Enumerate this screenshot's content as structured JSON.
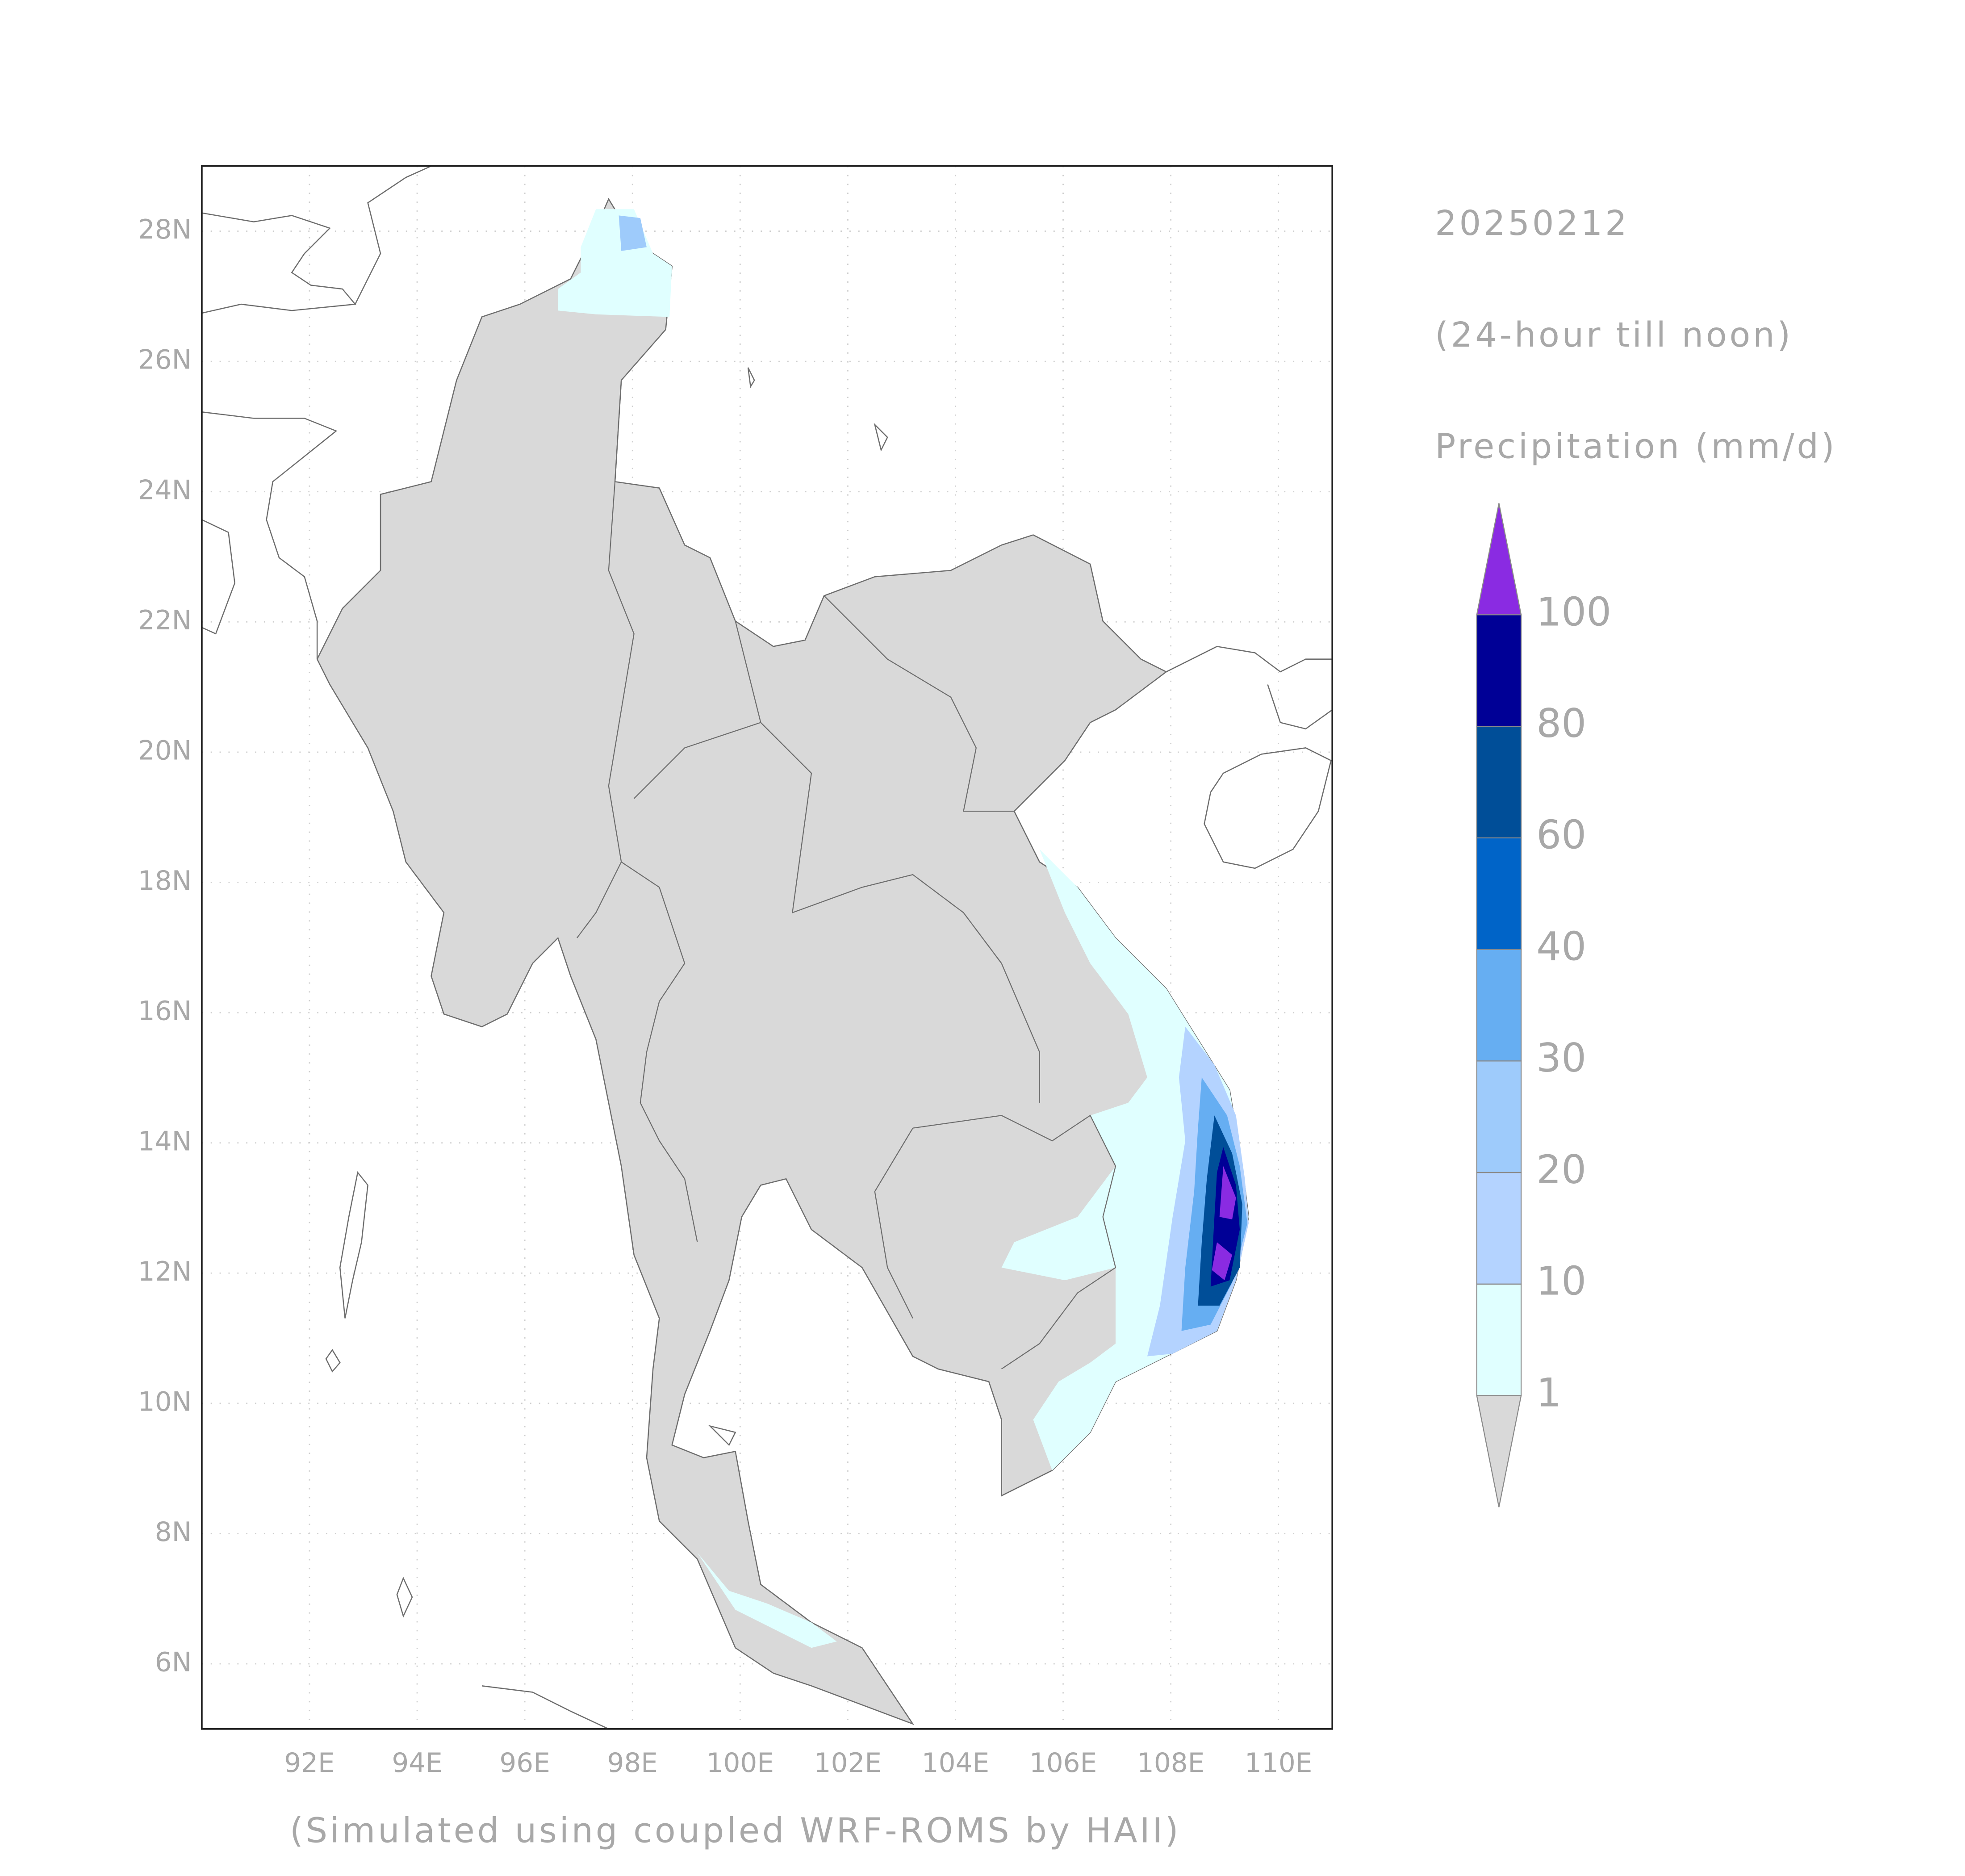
{
  "map": {
    "annotations": [
      "20250212",
      "(24-hour till noon)",
      "Precipitation (mm/d)"
    ],
    "credit": "(Simulated using coupled WRF-ROMS by HAII)",
    "xlim": [
      90,
      111
    ],
    "ylim": [
      5,
      29
    ],
    "xticks": [
      {
        "value": 92,
        "label": "92E"
      },
      {
        "value": 94,
        "label": "94E"
      },
      {
        "value": 96,
        "label": "96E"
      },
      {
        "value": 98,
        "label": "98E"
      },
      {
        "value": 100,
        "label": "100E"
      },
      {
        "value": 102,
        "label": "102E"
      },
      {
        "value": 104,
        "label": "104E"
      },
      {
        "value": 106,
        "label": "106E"
      },
      {
        "value": 108,
        "label": "108E"
      },
      {
        "value": 110,
        "label": "110E"
      }
    ],
    "yticks": [
      {
        "value": 6,
        "label": "6N"
      },
      {
        "value": 8,
        "label": "8N"
      },
      {
        "value": 10,
        "label": "10N"
      },
      {
        "value": 12,
        "label": "12N"
      },
      {
        "value": 14,
        "label": "14N"
      },
      {
        "value": 16,
        "label": "16N"
      },
      {
        "value": 18,
        "label": "18N"
      },
      {
        "value": 20,
        "label": "20N"
      },
      {
        "value": 22,
        "label": "22N"
      },
      {
        "value": 24,
        "label": "24N"
      },
      {
        "value": 26,
        "label": "26N"
      },
      {
        "value": 28,
        "label": "28N"
      }
    ],
    "grid": true,
    "colorbar": {
      "levels": [
        1,
        10,
        20,
        30,
        40,
        60,
        80,
        100
      ],
      "colors": [
        "#d9d9d9",
        "#e0ffff",
        "#b4d3ff",
        "#9ecbfb",
        "#66aef2",
        "#0064c8",
        "#004e98",
        "#000096",
        "#8a2be2"
      ],
      "extend": "both"
    }
  }
}
